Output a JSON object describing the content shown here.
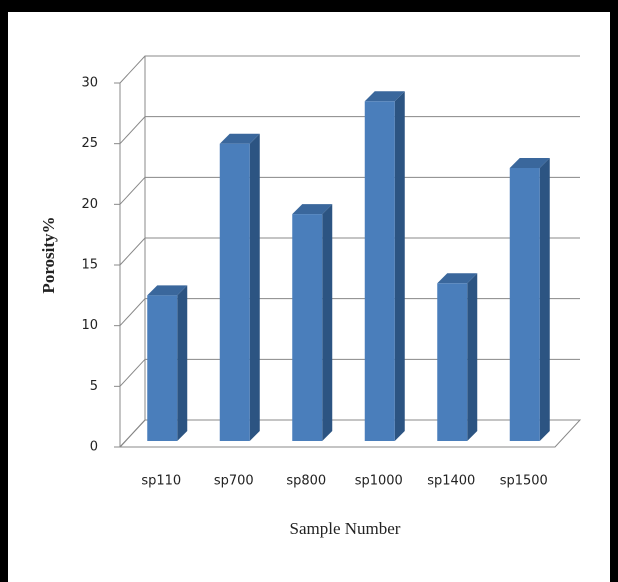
{
  "chart_data": {
    "type": "bar3d",
    "x_label": "Sample Number",
    "y_label": "Porosity%",
    "categories": [
      "sp110",
      "sp700",
      "sp800",
      "sp1000",
      "sp1400",
      "sp1500"
    ],
    "values": [
      12,
      24.5,
      18.7,
      28,
      13,
      22.5
    ],
    "color": "#4a7ebb",
    "ylim": [
      0,
      30
    ],
    "yticks": [
      0,
      5,
      10,
      15,
      20,
      25,
      30
    ],
    "grid": true
  }
}
